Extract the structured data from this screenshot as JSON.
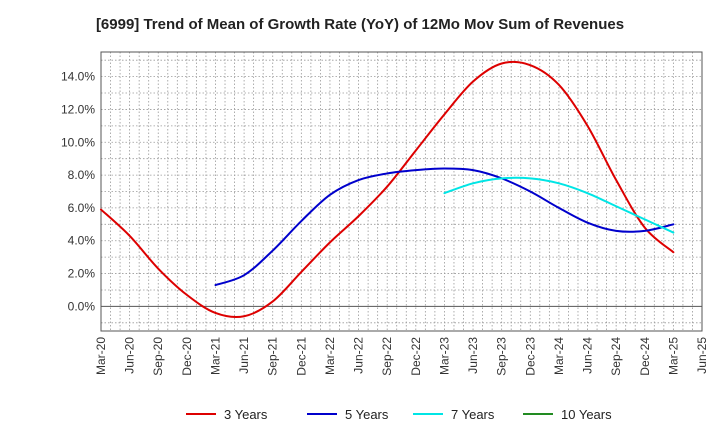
{
  "chart_data": {
    "type": "line",
    "title": "[6999]  Trend of Mean of Growth Rate (YoY) of 12Mo Mov Sum of Revenues",
    "xlabel": "",
    "ylabel": "",
    "ylim": [
      -1.5,
      15.5
    ],
    "yticks": [
      0,
      2,
      4,
      6,
      8,
      10,
      12,
      14
    ],
    "ytick_labels": [
      "0.0%",
      "2.0%",
      "4.0%",
      "6.0%",
      "8.0%",
      "10.0%",
      "12.0%",
      "14.0%"
    ],
    "categories": [
      "Mar-20",
      "Jun-20",
      "Sep-20",
      "Dec-20",
      "Mar-21",
      "Jun-21",
      "Sep-21",
      "Dec-21",
      "Mar-22",
      "Jun-22",
      "Sep-22",
      "Dec-22",
      "Mar-23",
      "Jun-23",
      "Sep-23",
      "Dec-23",
      "Mar-24",
      "Jun-24",
      "Sep-24",
      "Dec-24",
      "Mar-25",
      "Jun-25"
    ],
    "grid": true,
    "legend_position": "bottom",
    "series": [
      {
        "name": "3 Years",
        "color": "#dd0000",
        "values": [
          5.9,
          4.3,
          2.3,
          0.7,
          -0.4,
          -0.6,
          0.3,
          2.1,
          3.9,
          5.5,
          7.3,
          9.5,
          11.7,
          13.7,
          14.8,
          14.7,
          13.5,
          11.0,
          7.7,
          4.8,
          3.3,
          null
        ]
      },
      {
        "name": "5 Years",
        "color": "#0000cc",
        "values": [
          null,
          null,
          null,
          null,
          1.3,
          1.9,
          3.4,
          5.2,
          6.8,
          7.7,
          8.1,
          8.3,
          8.4,
          8.3,
          7.8,
          7.0,
          6.0,
          5.1,
          4.6,
          4.6,
          5.0,
          null
        ]
      },
      {
        "name": "7 Years",
        "color": "#00e5e5",
        "values": [
          null,
          null,
          null,
          null,
          null,
          null,
          null,
          null,
          null,
          null,
          null,
          null,
          6.9,
          7.5,
          7.8,
          7.8,
          7.5,
          6.9,
          6.1,
          5.3,
          4.5,
          null
        ]
      },
      {
        "name": "10 Years",
        "color": "#228b22",
        "values": [
          null,
          null,
          null,
          null,
          null,
          null,
          null,
          null,
          null,
          null,
          null,
          null,
          null,
          null,
          null,
          null,
          null,
          null,
          null,
          null,
          null,
          null
        ]
      }
    ]
  }
}
